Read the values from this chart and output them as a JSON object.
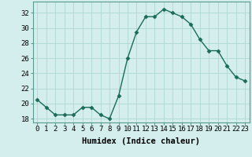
{
  "x": [
    0,
    1,
    2,
    3,
    4,
    5,
    6,
    7,
    8,
    9,
    10,
    11,
    12,
    13,
    14,
    15,
    16,
    17,
    18,
    19,
    20,
    21,
    22,
    23
  ],
  "y": [
    20.5,
    19.5,
    18.5,
    18.5,
    18.5,
    19.5,
    19.5,
    18.5,
    18.0,
    21.0,
    26.0,
    29.5,
    31.5,
    31.5,
    32.5,
    32.0,
    31.5,
    30.5,
    28.5,
    27.0,
    27.0,
    25.0,
    23.5,
    23.0
  ],
  "line_color": "#1a6b5a",
  "marker": "D",
  "marker_size": 2.5,
  "bg_color": "#d4eeed",
  "grid_color": "#afd8d5",
  "xlabel": "Humidex (Indice chaleur)",
  "xlim": [
    -0.5,
    23.5
  ],
  "ylim": [
    17.5,
    33.5
  ],
  "yticks": [
    18,
    20,
    22,
    24,
    26,
    28,
    30,
    32
  ],
  "xticks": [
    0,
    1,
    2,
    3,
    4,
    5,
    6,
    7,
    8,
    9,
    10,
    11,
    12,
    13,
    14,
    15,
    16,
    17,
    18,
    19,
    20,
    21,
    22,
    23
  ],
  "label_fontsize": 7.5,
  "tick_fontsize": 6.5,
  "linewidth": 1.0
}
